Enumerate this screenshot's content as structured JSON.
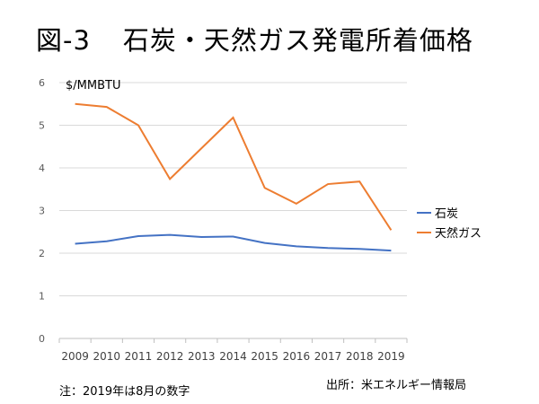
{
  "chart_data": {
    "type": "line",
    "title_num": "図-3",
    "title": "石炭・天然ガス発電所着価格",
    "ylabel": "$/MMBTU",
    "categories": [
      "2009",
      "2010",
      "2011",
      "2012",
      "2013",
      "2014",
      "2015",
      "2016",
      "2017",
      "2018",
      "2019"
    ],
    "ylim": [
      0,
      6
    ],
    "yticks": [
      "0",
      "1",
      "2",
      "3",
      "4",
      "5",
      "6"
    ],
    "grid": true,
    "legend_position": "right",
    "series": [
      {
        "name": "石炭",
        "color": "#4472c4",
        "values": [
          2.22,
          2.28,
          2.4,
          2.43,
          2.38,
          2.39,
          2.24,
          2.16,
          2.12,
          2.1,
          2.06
        ]
      },
      {
        "name": "天然ガス",
        "color": "#ed7d31",
        "values": [
          5.5,
          5.43,
          5.0,
          3.74,
          4.46,
          5.18,
          3.53,
          3.16,
          3.62,
          3.68,
          2.54
        ]
      }
    ]
  },
  "note": "注：2019年は8月の数字",
  "source": "出所：米エネルギー情報局"
}
